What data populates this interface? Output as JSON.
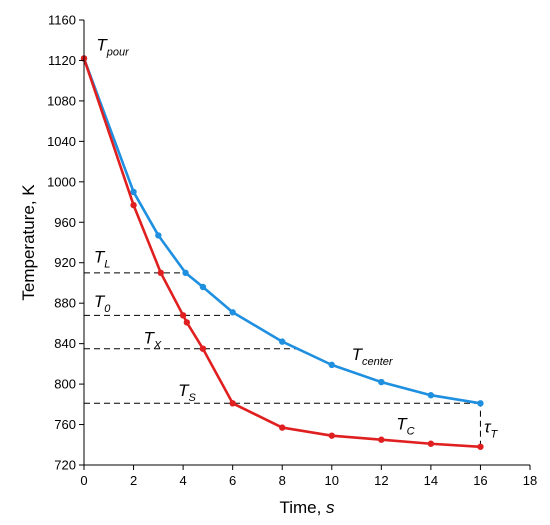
{
  "chart_data": {
    "type": "line",
    "xlabel": "Time, ",
    "xlabel_unit": "s",
    "ylabel": "Temperature, K",
    "xlim": [
      0,
      18
    ],
    "ylim": [
      720,
      1160
    ],
    "x_ticks": [
      0,
      2,
      4,
      6,
      8,
      10,
      12,
      14,
      16,
      18
    ],
    "y_ticks": [
      720,
      760,
      800,
      840,
      880,
      920,
      960,
      1000,
      1040,
      1080,
      1120,
      1160
    ],
    "grid": false,
    "series": [
      {
        "name": "T_center",
        "color": "#1f8fe0",
        "points": [
          {
            "x": 0,
            "y": 1122
          },
          {
            "x": 2,
            "y": 990
          },
          {
            "x": 3,
            "y": 947
          },
          {
            "x": 4.1,
            "y": 910
          },
          {
            "x": 4.8,
            "y": 896
          },
          {
            "x": 6,
            "y": 871
          },
          {
            "x": 8,
            "y": 842
          },
          {
            "x": 10,
            "y": 819
          },
          {
            "x": 12,
            "y": 802
          },
          {
            "x": 14,
            "y": 789
          },
          {
            "x": 16,
            "y": 781
          }
        ]
      },
      {
        "name": "T_C",
        "color": "#e02020",
        "points": [
          {
            "x": 0,
            "y": 1122
          },
          {
            "x": 2,
            "y": 977
          },
          {
            "x": 3.1,
            "y": 910
          },
          {
            "x": 4,
            "y": 868
          },
          {
            "x": 4.15,
            "y": 861
          },
          {
            "x": 4.8,
            "y": 835
          },
          {
            "x": 6,
            "y": 781
          },
          {
            "x": 8,
            "y": 757
          },
          {
            "x": 10,
            "y": 749
          },
          {
            "x": 12,
            "y": 745
          },
          {
            "x": 14,
            "y": 741
          },
          {
            "x": 16,
            "y": 738
          }
        ]
      }
    ],
    "reference_lines": [
      {
        "y": 910,
        "x_end": 4.1
      },
      {
        "y": 868,
        "x_end": 6
      },
      {
        "y": 835,
        "x_end": 8.6
      },
      {
        "y": 781,
        "x_end": 16
      }
    ],
    "vertical_reference": {
      "x": 16,
      "y_from": 738,
      "y_to": 781
    },
    "annotations": [
      {
        "id": "t-pour",
        "main": "T",
        "sub": "pour",
        "x": 0.5,
        "y": 1130
      },
      {
        "id": "t-l",
        "main": "T",
        "sub": "L",
        "x": 0.4,
        "y": 920
      },
      {
        "id": "t-0",
        "main": "T",
        "sub": "0",
        "x": 0.4,
        "y": 876
      },
      {
        "id": "t-x",
        "main": "T",
        "sub": "X",
        "x": 2.4,
        "y": 840
      },
      {
        "id": "t-s",
        "main": "T",
        "sub": "S",
        "x": 3.8,
        "y": 788
      },
      {
        "id": "t-center",
        "main": "T",
        "sub": "center",
        "x": 10.8,
        "y": 824
      },
      {
        "id": "t-c",
        "main": "T",
        "sub": "C",
        "x": 12.6,
        "y": 755
      },
      {
        "id": "tau-t",
        "main": "τ",
        "sub": "T",
        "x": 16.15,
        "y": 752
      }
    ]
  }
}
